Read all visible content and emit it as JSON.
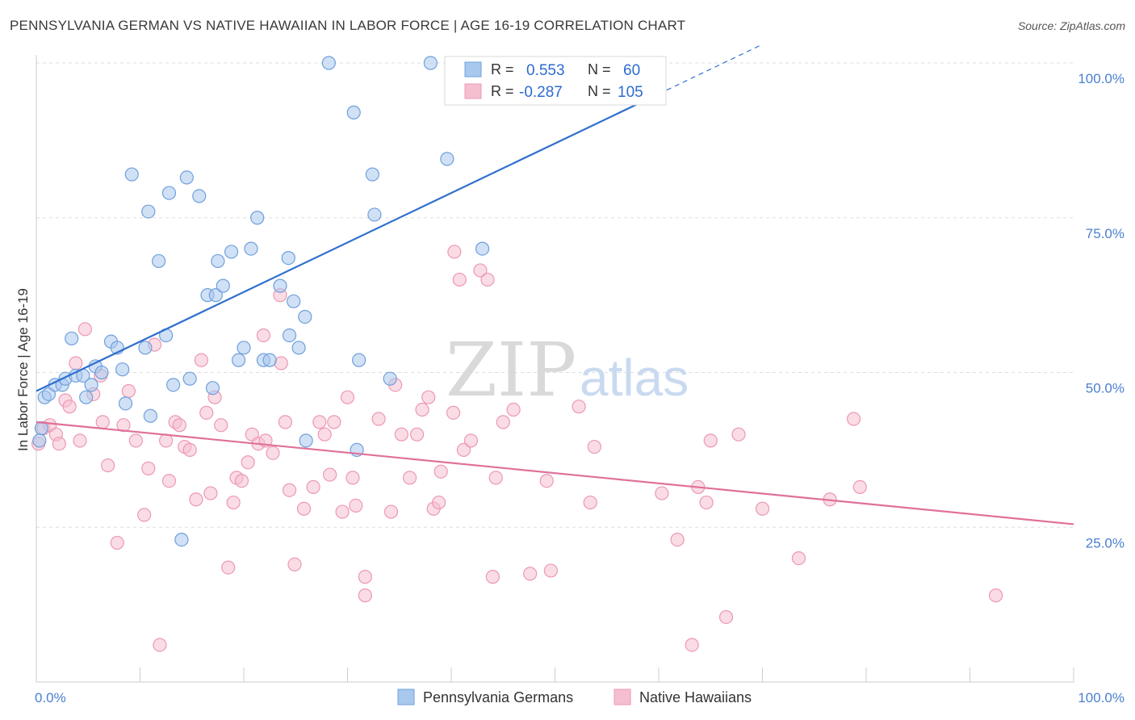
{
  "title": "PENNSYLVANIA GERMAN VS NATIVE HAWAIIAN IN LABOR FORCE | AGE 16-19 CORRELATION CHART",
  "source": "Source: ZipAtlas.com",
  "watermark": {
    "zip": "ZIP",
    "atlas": "atlas"
  },
  "colors": {
    "blue_fill": "#a9c8ee",
    "blue_stroke": "#6f9fdc",
    "blue_line": "#2f6fce",
    "pink_fill": "#f6bfd0",
    "pink_stroke": "#ec98b4",
    "pink_line": "#e0709a",
    "tick_text": "#4a7fd0",
    "grid": "#dddddd"
  },
  "legend_top": {
    "rows": [
      {
        "r_label": "R =",
        "r_value": "0.553",
        "n_label": "N =",
        "n_value": "60"
      },
      {
        "r_label": "R =",
        "r_value": "-0.287",
        "n_label": "N =",
        "n_value": "105"
      }
    ]
  },
  "legend_bottom": [
    "Pennsylvania Germans",
    "Native Hawaiians"
  ],
  "chart_data": {
    "type": "scatter",
    "title": "PENNSYLVANIA GERMAN VS NATIVE HAWAIIAN IN LABOR FORCE | AGE 16-19 CORRELATION CHART",
    "ylabel": "In Labor Force | Age 16-19",
    "xlabel": "",
    "x_tick_labels": [
      "0.0%",
      "100.0%"
    ],
    "y_tick_labels": [
      "25.0%",
      "50.0%",
      "75.0%",
      "100.0%"
    ],
    "xlim": [
      0,
      100
    ],
    "ylim": [
      0,
      100
    ],
    "grid": true,
    "legend_position": "top-center",
    "series": [
      {
        "name": "Pennsylvania Germans",
        "r": 0.553,
        "n": 60,
        "trend": {
          "x0": 0,
          "y0": 47.0,
          "x1": 60,
          "y1": 95.0,
          "dash_to_x": 70,
          "dash_to_y": 103.0
        },
        "points": [
          [
            0.3,
            39
          ],
          [
            0.5,
            41
          ],
          [
            0.8,
            46
          ],
          [
            1.2,
            46.5
          ],
          [
            1.8,
            48
          ],
          [
            2.5,
            48
          ],
          [
            2.8,
            49
          ],
          [
            3.4,
            55.5
          ],
          [
            3.8,
            49.5
          ],
          [
            4.5,
            49.5
          ],
          [
            4.8,
            46
          ],
          [
            5.3,
            48
          ],
          [
            5.7,
            51
          ],
          [
            6.3,
            50
          ],
          [
            7.2,
            55
          ],
          [
            7.8,
            54
          ],
          [
            8.3,
            50.5
          ],
          [
            8.6,
            45
          ],
          [
            9.2,
            82
          ],
          [
            10.5,
            54
          ],
          [
            10.8,
            76
          ],
          [
            11,
            43
          ],
          [
            11.8,
            68
          ],
          [
            12.5,
            56
          ],
          [
            12.8,
            79
          ],
          [
            13.2,
            48
          ],
          [
            14,
            23
          ],
          [
            14.5,
            81.5
          ],
          [
            14.8,
            49
          ],
          [
            15.7,
            78.5
          ],
          [
            16.5,
            62.5
          ],
          [
            17,
            47.5
          ],
          [
            17.3,
            62.5
          ],
          [
            17.5,
            68
          ],
          [
            18,
            64
          ],
          [
            18.8,
            69.5
          ],
          [
            19.5,
            52
          ],
          [
            20,
            54
          ],
          [
            20.7,
            70
          ],
          [
            21.3,
            75
          ],
          [
            21.9,
            52
          ],
          [
            22.5,
            52
          ],
          [
            23.5,
            64
          ],
          [
            24.3,
            68.5
          ],
          [
            24.4,
            56
          ],
          [
            24.8,
            61.5
          ],
          [
            25.3,
            54
          ],
          [
            25.9,
            59
          ],
          [
            26,
            39
          ],
          [
            28.2,
            100
          ],
          [
            30.6,
            92
          ],
          [
            30.9,
            37.5
          ],
          [
            31.1,
            52
          ],
          [
            32.4,
            82
          ],
          [
            32.6,
            75.5
          ],
          [
            34.1,
            49
          ],
          [
            38,
            100
          ],
          [
            39.6,
            84.5
          ],
          [
            43,
            70
          ],
          [
            60,
            100
          ]
        ]
      },
      {
        "name": "Native Hawaiians",
        "r": -0.287,
        "n": 105,
        "trend": {
          "x0": 0,
          "y0": 42.0,
          "x1": 100,
          "y1": 25.5
        },
        "points": [
          [
            0.2,
            38.5
          ],
          [
            0.7,
            41
          ],
          [
            1.3,
            41.5
          ],
          [
            1.9,
            40
          ],
          [
            2.2,
            38.5
          ],
          [
            2.8,
            45.5
          ],
          [
            3.2,
            44.5
          ],
          [
            3.8,
            51.5
          ],
          [
            4.2,
            39
          ],
          [
            4.7,
            57
          ],
          [
            5.5,
            46.5
          ],
          [
            6.2,
            49.5
          ],
          [
            6.4,
            42
          ],
          [
            6.9,
            35
          ],
          [
            7.8,
            22.5
          ],
          [
            8.4,
            41.5
          ],
          [
            8.9,
            47
          ],
          [
            9.6,
            39
          ],
          [
            10.4,
            27
          ],
          [
            10.8,
            34.5
          ],
          [
            11.4,
            54.5
          ],
          [
            11.9,
            6
          ],
          [
            12.5,
            39
          ],
          [
            12.8,
            32.5
          ],
          [
            13.4,
            42
          ],
          [
            13.8,
            41.5
          ],
          [
            14.3,
            38
          ],
          [
            14.8,
            37.5
          ],
          [
            15.4,
            29.5
          ],
          [
            15.9,
            52
          ],
          [
            16.4,
            43.5
          ],
          [
            16.8,
            30.5
          ],
          [
            17.2,
            46
          ],
          [
            17.8,
            41.5
          ],
          [
            18.5,
            18.5
          ],
          [
            19,
            29
          ],
          [
            19.3,
            33
          ],
          [
            19.8,
            32.5
          ],
          [
            20.4,
            35.5
          ],
          [
            20.8,
            40
          ],
          [
            21.4,
            38.5
          ],
          [
            21.9,
            56
          ],
          [
            22.1,
            39
          ],
          [
            22.8,
            37
          ],
          [
            23.5,
            62.5
          ],
          [
            23.6,
            51.5
          ],
          [
            24,
            42
          ],
          [
            24.4,
            31
          ],
          [
            24.9,
            19
          ],
          [
            25.8,
            28
          ],
          [
            26.7,
            31.5
          ],
          [
            27.3,
            42
          ],
          [
            27.8,
            40
          ],
          [
            28.3,
            33.5
          ],
          [
            28.7,
            42
          ],
          [
            29.5,
            27.5
          ],
          [
            30,
            46
          ],
          [
            30.5,
            33
          ],
          [
            30.8,
            28.5
          ],
          [
            31.7,
            17
          ],
          [
            31.7,
            14
          ],
          [
            33,
            42.5
          ],
          [
            34.2,
            27.5
          ],
          [
            34.6,
            48
          ],
          [
            35.2,
            40
          ],
          [
            36,
            33
          ],
          [
            36.7,
            40
          ],
          [
            37.2,
            44
          ],
          [
            37.8,
            46
          ],
          [
            38.3,
            28
          ],
          [
            38.8,
            29
          ],
          [
            39,
            34
          ],
          [
            40.2,
            43.5
          ],
          [
            40.3,
            69.5
          ],
          [
            40.8,
            65
          ],
          [
            41.2,
            37.5
          ],
          [
            41.9,
            39
          ],
          [
            42.8,
            66.5
          ],
          [
            43.5,
            65
          ],
          [
            44,
            17
          ],
          [
            44.3,
            33
          ],
          [
            45,
            42
          ],
          [
            46,
            44
          ],
          [
            47.6,
            17.5
          ],
          [
            49.2,
            32.5
          ],
          [
            49.6,
            18
          ],
          [
            52.3,
            44.5
          ],
          [
            53.4,
            29
          ],
          [
            53.8,
            38
          ],
          [
            60.3,
            30.5
          ],
          [
            61.8,
            23
          ],
          [
            63.2,
            6
          ],
          [
            63.8,
            31.5
          ],
          [
            64.6,
            29
          ],
          [
            65,
            39
          ],
          [
            66.5,
            10.5
          ],
          [
            67.7,
            40
          ],
          [
            70,
            28
          ],
          [
            73.5,
            20
          ],
          [
            76.5,
            29.5
          ],
          [
            78.8,
            42.5
          ],
          [
            79.4,
            31.5
          ],
          [
            92.5,
            14
          ]
        ]
      }
    ]
  }
}
